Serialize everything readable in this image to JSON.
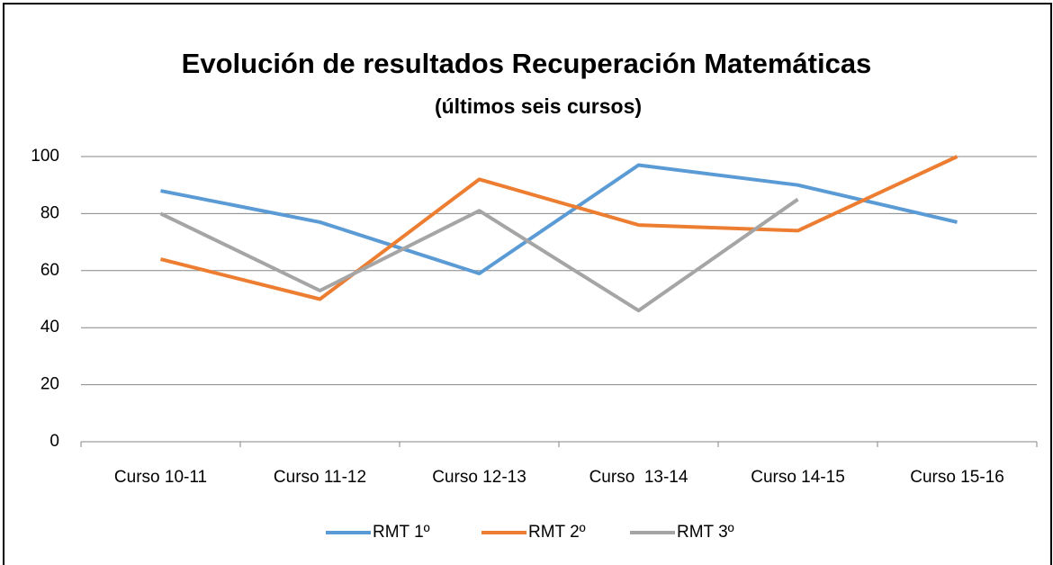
{
  "chart_data": {
    "type": "line",
    "title": "Evolución de resultados Recuperación Matemáticas",
    "subtitle": "(últimos seis cursos)",
    "categories": [
      "Curso 10-11",
      "Curso 11-12",
      "Curso 12-13",
      "Curso  13-14",
      "Curso 14-15",
      "Curso 15-16"
    ],
    "series": [
      {
        "name": "RMT 1º",
        "color": "#5b9bd5",
        "values": [
          88,
          77,
          59,
          97,
          90,
          77
        ]
      },
      {
        "name": "RMT 2º",
        "color": "#ed7d31",
        "values": [
          64,
          50,
          92,
          76,
          74,
          100
        ]
      },
      {
        "name": "RMT 3º",
        "color": "#a5a5a5",
        "values": [
          80,
          53,
          81,
          46,
          85,
          null
        ]
      }
    ],
    "ylim": [
      0,
      100
    ],
    "yticks": [
      0,
      20,
      40,
      60,
      80,
      100
    ],
    "grid": true,
    "legend": "bottom"
  }
}
